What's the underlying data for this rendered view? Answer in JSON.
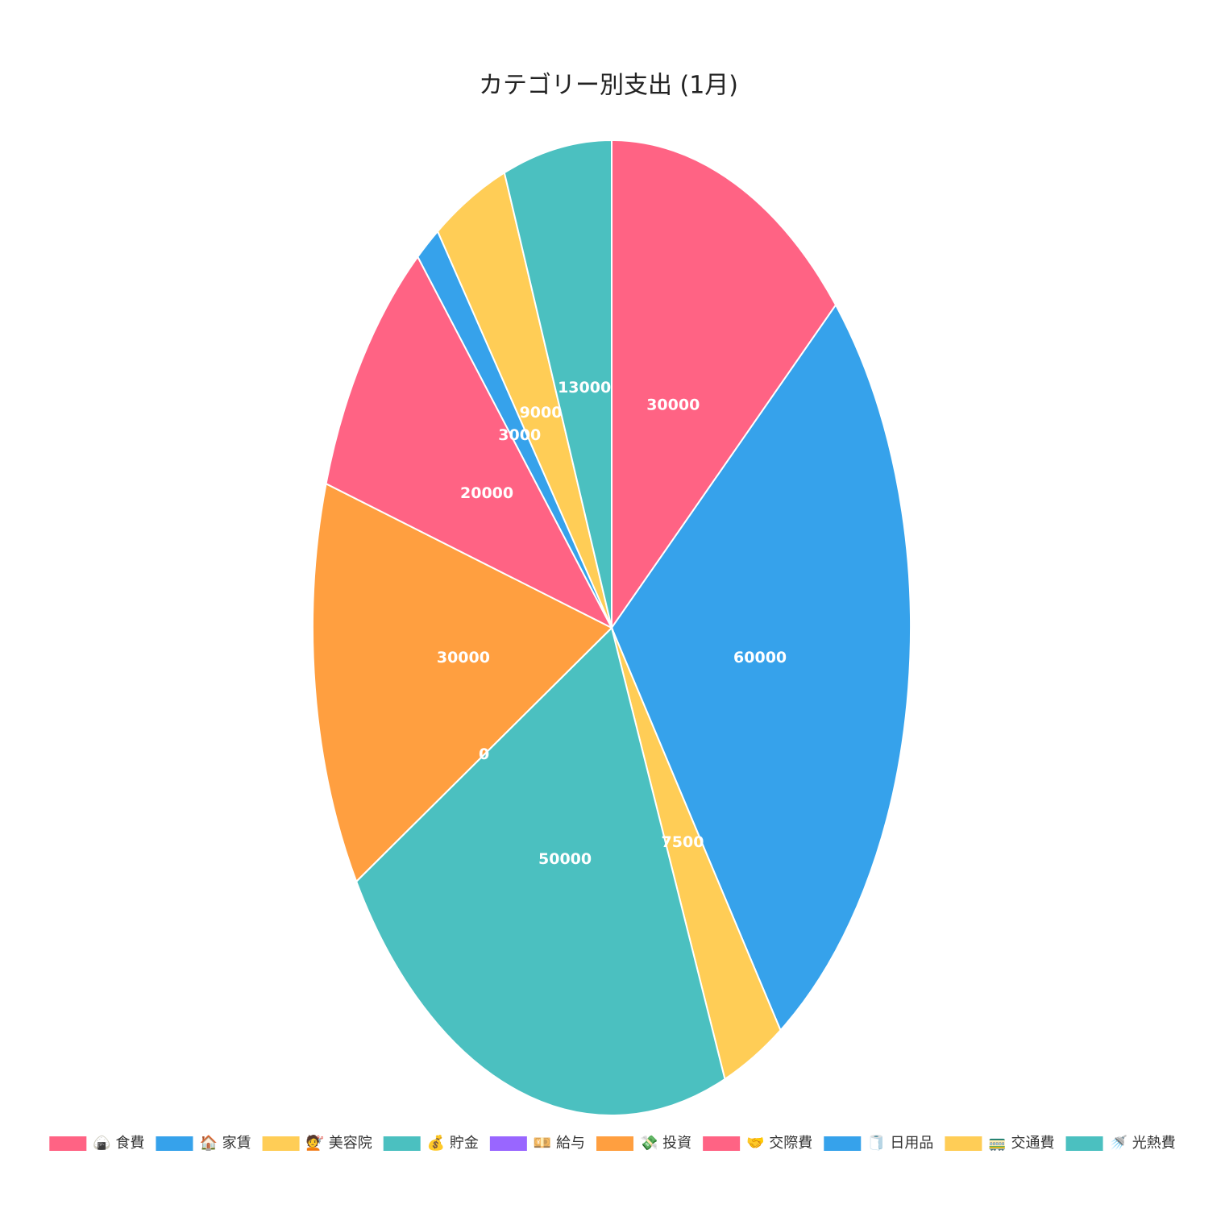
{
  "chart_data": {
    "type": "pie",
    "title": "カテゴリー別支出 (1月)",
    "categories": [
      "🍙 食費",
      "🏠 家賃",
      "💇 美容院",
      "💰 貯金",
      "💴 給与",
      "💸 投資",
      "🤝 交際費",
      "🧻 日用品",
      "🚃 交通費",
      "🚿 光熱費"
    ],
    "values": [
      30000,
      60000,
      7500,
      50000,
      0,
      30000,
      20000,
      3000,
      9000,
      13000
    ],
    "colors": [
      "#ff6384",
      "#36a2eb",
      "#ffcd56",
      "#4bc0c0",
      "#9966ff",
      "#ff9f40",
      "#ff6384",
      "#36a2eb",
      "#ffcd56",
      "#4bc0c0"
    ],
    "legend": "bottom"
  }
}
